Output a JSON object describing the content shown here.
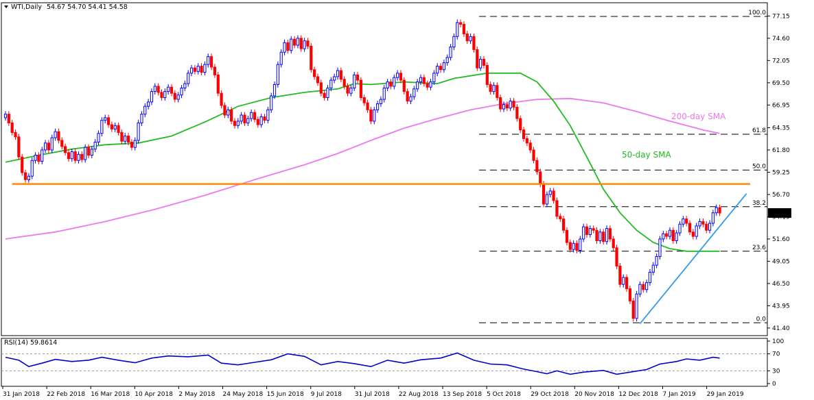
{
  "header": {
    "symbol": "WTI,Daily",
    "ohlc": "54.67 54.70 54.41 54.58"
  },
  "colors": {
    "bull": "#0000ff",
    "bear": "#ff0000",
    "sma50": "#22bb22",
    "sma200": "#ee77ee",
    "resistance": "#ff8800",
    "trendline": "#3399ee",
    "rsi": "#0000cc",
    "grid_dash": "#000000"
  },
  "rsi_panel": {
    "title": "RSI(14) 59.8614",
    "levels": [
      "100",
      "70",
      "30",
      "0"
    ],
    "level_values": [
      100,
      70,
      30,
      0
    ]
  },
  "chart_data": {
    "type": "candlestick",
    "price_axis": {
      "ticks": [
        "77.15",
        "74.60",
        "72.05",
        "69.50",
        "66.95",
        "64.35",
        "61.80",
        "59.25",
        "56.70",
        "54.15",
        "51.60",
        "49.05",
        "46.50",
        "43.95",
        "41.40"
      ],
      "tick_values": [
        77.15,
        74.6,
        72.05,
        69.5,
        66.95,
        64.35,
        61.8,
        59.25,
        56.7,
        54.15,
        51.6,
        49.05,
        46.5,
        43.95,
        41.4
      ],
      "ylim": [
        41.0,
        78.2
      ],
      "current_price": "54.58",
      "current_price_value": 54.58
    },
    "date_axis": {
      "labels": [
        "31 Jan 2018",
        "22 Feb 2018",
        "16 Mar 2018",
        "10 Apr 2018",
        "2 May 2018",
        "24 May 2018",
        "15 Jun 2018",
        "9 Jul 2018",
        "31 Jul 2018",
        "22 Aug 2018",
        "13 Sep 2018",
        "5 Oct 2018",
        "29 Oct 2018",
        "20 Nov 2018",
        "12 Dec 2018",
        "7 Jan 2019",
        "29 Jan 2019"
      ]
    },
    "fibonacci": [
      {
        "label": "100.0",
        "value": 77.1
      },
      {
        "label": "61.8",
        "value": 63.6
      },
      {
        "label": "50.0",
        "value": 59.5
      },
      {
        "label": "38.2",
        "value": 55.3
      },
      {
        "label": "23.6",
        "value": 50.2
      },
      {
        "label": "0.0",
        "value": 42.0
      }
    ],
    "resistance_level": 57.9,
    "sma_labels": {
      "sma50": "50-day SMA",
      "sma200": "200-day SMA"
    },
    "sma200_points": [
      [
        0,
        51.6
      ],
      [
        30,
        52.4
      ],
      [
        60,
        53.6
      ],
      [
        90,
        55.0
      ],
      [
        120,
        56.6
      ],
      [
        150,
        58.4
      ],
      [
        180,
        60.1
      ],
      [
        200,
        61.4
      ],
      [
        220,
        62.9
      ],
      [
        240,
        64.3
      ],
      [
        260,
        65.4
      ],
      [
        280,
        66.4
      ],
      [
        300,
        67.1
      ],
      [
        320,
        67.6
      ],
      [
        340,
        67.7
      ],
      [
        360,
        67.2
      ],
      [
        380,
        66.2
      ],
      [
        400,
        65.1
      ],
      [
        420,
        64.1
      ],
      [
        430,
        63.7
      ]
    ],
    "sma50_points": [
      [
        0,
        60.4
      ],
      [
        20,
        61.2
      ],
      [
        40,
        61.9
      ],
      [
        60,
        62.4
      ],
      [
        80,
        62.6
      ],
      [
        100,
        63.4
      ],
      [
        120,
        65.0
      ],
      [
        140,
        66.8
      ],
      [
        160,
        67.8
      ],
      [
        180,
        68.4
      ],
      [
        200,
        68.8
      ],
      [
        210,
        69.4
      ],
      [
        220,
        69.3
      ],
      [
        240,
        69.6
      ],
      [
        260,
        69.4
      ],
      [
        270,
        70.0
      ],
      [
        290,
        70.6
      ],
      [
        310,
        70.6
      ],
      [
        320,
        69.6
      ],
      [
        330,
        67.4
      ],
      [
        340,
        64.6
      ],
      [
        350,
        61.0
      ],
      [
        360,
        57.3
      ],
      [
        370,
        54.6
      ],
      [
        380,
        52.6
      ],
      [
        390,
        51.2
      ],
      [
        400,
        50.5
      ],
      [
        410,
        50.2
      ],
      [
        430,
        50.2
      ]
    ],
    "trendline": {
      "start": [
        382,
        41.9
      ],
      "end": [
        442,
        56.8
      ]
    },
    "candles": [
      [
        0,
        65.5,
        65.9
      ],
      [
        2,
        65.9,
        64.9
      ],
      [
        4,
        64.9,
        63.8
      ],
      [
        6,
        63.8,
        63.3
      ],
      [
        8,
        63.3,
        61.0
      ],
      [
        10,
        61.0,
        59.2
      ],
      [
        12,
        59.2,
        58.4
      ],
      [
        14,
        58.4,
        58.8
      ],
      [
        16,
        58.8,
        60.6
      ],
      [
        18,
        60.6,
        61.2
      ],
      [
        20,
        61.2,
        60.5
      ],
      [
        22,
        60.5,
        61.8
      ],
      [
        24,
        61.8,
        62.6
      ],
      [
        26,
        62.6,
        61.8
      ],
      [
        28,
        61.8,
        63.2
      ],
      [
        30,
        63.2,
        63.9
      ],
      [
        32,
        63.9,
        62.9
      ],
      [
        34,
        62.9,
        62.2
      ],
      [
        36,
        62.2,
        61.5
      ],
      [
        38,
        61.5,
        60.8
      ],
      [
        40,
        60.8,
        61.6
      ],
      [
        42,
        61.6,
        60.6
      ],
      [
        44,
        60.6,
        61.3
      ],
      [
        46,
        61.3,
        60.7
      ],
      [
        48,
        60.7,
        62.1
      ],
      [
        50,
        62.1,
        61.2
      ],
      [
        52,
        61.2,
        61.9
      ],
      [
        54,
        61.9,
        62.7
      ],
      [
        56,
        62.7,
        63.7
      ],
      [
        58,
        63.7,
        65.2
      ],
      [
        60,
        65.2,
        65.5
      ],
      [
        62,
        65.5,
        64.7
      ],
      [
        64,
        64.7,
        64.2
      ],
      [
        66,
        64.2,
        64.6
      ],
      [
        68,
        64.6,
        63.8
      ],
      [
        70,
        63.8,
        62.8
      ],
      [
        72,
        62.8,
        63.4
      ],
      [
        74,
        63.4,
        62.7
      ],
      [
        76,
        62.7,
        62.1
      ],
      [
        78,
        62.1,
        62.9
      ],
      [
        80,
        62.9,
        64.9
      ],
      [
        82,
        64.9,
        65.9
      ],
      [
        84,
        65.9,
        66.8
      ],
      [
        86,
        66.8,
        67.3
      ],
      [
        88,
        67.3,
        68.5
      ],
      [
        90,
        68.5,
        69.1
      ],
      [
        92,
        69.1,
        68.4
      ],
      [
        94,
        68.4,
        67.8
      ],
      [
        96,
        67.8,
        68.5
      ],
      [
        98,
        68.5,
        69.0
      ],
      [
        100,
        69.0,
        68.3
      ],
      [
        102,
        68.3,
        67.6
      ],
      [
        104,
        67.6,
        68.1
      ],
      [
        106,
        68.1,
        68.9
      ],
      [
        108,
        68.9,
        69.4
      ],
      [
        110,
        69.4,
        70.6
      ],
      [
        112,
        70.6,
        71.2
      ],
      [
        114,
        71.2,
        70.8
      ],
      [
        116,
        70.8,
        71.4
      ],
      [
        118,
        71.4,
        70.7
      ],
      [
        120,
        70.7,
        71.6
      ],
      [
        122,
        71.6,
        72.5
      ],
      [
        124,
        72.5,
        71.3
      ],
      [
        126,
        71.3,
        70.4
      ],
      [
        128,
        70.4,
        68.3
      ],
      [
        130,
        68.3,
        66.9
      ],
      [
        132,
        66.9,
        65.8
      ],
      [
        134,
        65.8,
        66.4
      ],
      [
        136,
        66.4,
        65.1
      ],
      [
        138,
        65.1,
        64.6
      ],
      [
        140,
        64.6,
        65.1
      ],
      [
        142,
        65.1,
        65.8
      ],
      [
        144,
        65.8,
        64.9
      ],
      [
        146,
        64.9,
        65.4
      ],
      [
        148,
        65.4,
        66.1
      ],
      [
        150,
        66.1,
        65.3
      ],
      [
        152,
        65.3,
        64.7
      ],
      [
        154,
        64.7,
        65.6
      ],
      [
        156,
        65.6,
        65.2
      ],
      [
        158,
        65.2,
        66.4
      ],
      [
        160,
        66.4,
        68.0
      ],
      [
        162,
        68.0,
        69.3
      ],
      [
        164,
        69.3,
        71.6
      ],
      [
        166,
        71.6,
        73.0
      ],
      [
        168,
        73.0,
        74.1
      ],
      [
        170,
        74.1,
        73.2
      ],
      [
        172,
        73.2,
        74.5
      ],
      [
        174,
        74.5,
        73.8
      ],
      [
        176,
        73.8,
        74.6
      ],
      [
        178,
        74.6,
        73.4
      ],
      [
        180,
        73.4,
        74.3
      ],
      [
        182,
        74.3,
        73.7
      ],
      [
        184,
        73.7,
        71.0
      ],
      [
        186,
        71.0,
        70.2
      ],
      [
        188,
        70.2,
        69.5
      ],
      [
        190,
        69.5,
        68.3
      ],
      [
        192,
        68.3,
        67.8
      ],
      [
        194,
        67.8,
        68.9
      ],
      [
        196,
        68.9,
        69.8
      ],
      [
        198,
        69.8,
        70.2
      ],
      [
        200,
        70.2,
        70.9
      ],
      [
        202,
        70.9,
        69.9
      ],
      [
        204,
        69.9,
        69.1
      ],
      [
        206,
        69.1,
        68.3
      ],
      [
        208,
        68.3,
        68.9
      ],
      [
        210,
        68.9,
        70.4
      ],
      [
        212,
        70.4,
        69.8
      ],
      [
        214,
        69.8,
        67.8
      ],
      [
        216,
        67.8,
        67.2
      ],
      [
        218,
        67.2,
        66.4
      ],
      [
        220,
        66.4,
        65.1
      ],
      [
        222,
        65.1,
        66.4
      ],
      [
        224,
        66.4,
        67.1
      ],
      [
        226,
        67.1,
        67.6
      ],
      [
        228,
        67.6,
        68.9
      ],
      [
        230,
        68.9,
        69.6
      ],
      [
        232,
        69.6,
        69.1
      ],
      [
        234,
        69.1,
        70.1
      ],
      [
        236,
        70.1,
        70.6
      ],
      [
        238,
        70.6,
        69.8
      ],
      [
        240,
        69.8,
        68.5
      ],
      [
        242,
        68.5,
        67.4
      ],
      [
        244,
        67.4,
        67.9
      ],
      [
        246,
        67.9,
        68.8
      ],
      [
        248,
        68.8,
        69.6
      ],
      [
        250,
        69.6,
        70.1
      ],
      [
        252,
        70.1,
        69.4
      ],
      [
        254,
        69.4,
        69.0
      ],
      [
        256,
        69.0,
        69.6
      ],
      [
        258,
        69.6,
        70.6
      ],
      [
        260,
        70.6,
        71.4
      ],
      [
        262,
        71.4,
        71.0
      ],
      [
        264,
        71.0,
        71.8
      ],
      [
        266,
        71.8,
        72.4
      ],
      [
        268,
        72.4,
        73.6
      ],
      [
        270,
        73.6,
        74.8
      ],
      [
        272,
        74.8,
        76.4
      ],
      [
        274,
        76.4,
        76.2
      ],
      [
        276,
        76.2,
        75.1
      ],
      [
        278,
        75.1,
        74.3
      ],
      [
        280,
        74.3,
        74.8
      ],
      [
        282,
        74.8,
        73.3
      ],
      [
        284,
        73.3,
        71.2
      ],
      [
        286,
        71.2,
        72.2
      ],
      [
        288,
        72.2,
        71.5
      ],
      [
        290,
        71.5,
        69.3
      ],
      [
        292,
        69.3,
        68.5
      ],
      [
        294,
        68.5,
        69.2
      ],
      [
        296,
        69.2,
        67.8
      ],
      [
        298,
        67.8,
        66.5
      ],
      [
        300,
        66.5,
        67.0
      ],
      [
        302,
        67.0,
        66.6
      ],
      [
        304,
        66.6,
        67.4
      ],
      [
        306,
        67.4,
        66.7
      ],
      [
        308,
        66.7,
        65.4
      ],
      [
        310,
        65.4,
        64.1
      ],
      [
        312,
        64.1,
        63.1
      ],
      [
        314,
        63.1,
        62.6
      ],
      [
        316,
        62.6,
        61.8
      ],
      [
        318,
        61.8,
        60.6
      ],
      [
        320,
        60.6,
        59.3
      ],
      [
        322,
        59.3,
        57.9
      ],
      [
        324,
        57.9,
        55.6
      ],
      [
        326,
        55.6,
        56.7
      ],
      [
        328,
        56.7,
        57.1
      ],
      [
        330,
        57.1,
        56.0
      ],
      [
        332,
        56.0,
        54.2
      ],
      [
        334,
        54.2,
        53.9
      ],
      [
        336,
        53.9,
        52.6
      ],
      [
        338,
        52.6,
        51.2
      ],
      [
        340,
        51.2,
        50.4
      ],
      [
        342,
        50.4,
        51.1
      ],
      [
        344,
        51.1,
        50.3
      ],
      [
        346,
        50.3,
        51.6
      ],
      [
        348,
        51.6,
        53.0
      ],
      [
        350,
        53.0,
        52.1
      ],
      [
        352,
        52.1,
        52.8
      ],
      [
        354,
        52.8,
        52.6
      ],
      [
        356,
        52.6,
        51.4
      ],
      [
        358,
        51.4,
        52.4
      ],
      [
        360,
        52.4,
        51.3
      ],
      [
        362,
        51.3,
        52.8
      ],
      [
        364,
        52.8,
        51.6
      ],
      [
        366,
        51.6,
        50.6
      ],
      [
        368,
        50.6,
        48.5
      ],
      [
        370,
        48.5,
        46.4
      ],
      [
        372,
        46.4,
        47.2
      ],
      [
        374,
        47.2,
        45.9
      ],
      [
        376,
        45.9,
        44.5
      ],
      [
        378,
        44.5,
        42.5
      ],
      [
        380,
        42.5,
        45.3
      ],
      [
        382,
        45.3,
        46.4
      ],
      [
        384,
        46.4,
        45.8
      ],
      [
        386,
        45.8,
        46.6
      ],
      [
        388,
        46.6,
        47.8
      ],
      [
        390,
        47.8,
        48.6
      ],
      [
        392,
        48.6,
        49.6
      ],
      [
        394,
        49.6,
        51.6
      ],
      [
        396,
        51.6,
        52.2
      ],
      [
        398,
        52.2,
        51.9
      ],
      [
        400,
        51.9,
        52.6
      ],
      [
        402,
        52.6,
        51.4
      ],
      [
        404,
        51.4,
        52.3
      ],
      [
        406,
        52.3,
        53.3
      ],
      [
        408,
        53.3,
        53.9
      ],
      [
        410,
        53.9,
        53.4
      ],
      [
        412,
        53.4,
        52.4
      ],
      [
        414,
        52.4,
        51.9
      ],
      [
        416,
        51.9,
        53.1
      ],
      [
        418,
        53.1,
        53.6
      ],
      [
        420,
        53.6,
        53.3
      ],
      [
        422,
        53.3,
        52.6
      ],
      [
        424,
        52.6,
        53.4
      ],
      [
        426,
        53.4,
        54.6
      ],
      [
        428,
        54.6,
        55.2
      ],
      [
        430,
        55.2,
        54.58
      ]
    ],
    "rsi_points": [
      [
        0,
        62
      ],
      [
        8,
        55
      ],
      [
        14,
        40
      ],
      [
        22,
        48
      ],
      [
        30,
        57
      ],
      [
        40,
        52
      ],
      [
        50,
        55
      ],
      [
        58,
        62
      ],
      [
        68,
        55
      ],
      [
        78,
        49
      ],
      [
        88,
        60
      ],
      [
        98,
        65
      ],
      [
        110,
        63
      ],
      [
        122,
        67
      ],
      [
        130,
        48
      ],
      [
        140,
        44
      ],
      [
        150,
        50
      ],
      [
        160,
        56
      ],
      [
        170,
        70
      ],
      [
        180,
        64
      ],
      [
        190,
        44
      ],
      [
        200,
        52
      ],
      [
        210,
        47
      ],
      [
        220,
        40
      ],
      [
        230,
        55
      ],
      [
        240,
        48
      ],
      [
        250,
        56
      ],
      [
        262,
        60
      ],
      [
        272,
        72
      ],
      [
        282,
        55
      ],
      [
        292,
        46
      ],
      [
        302,
        44
      ],
      [
        312,
        34
      ],
      [
        320,
        28
      ],
      [
        326,
        23
      ],
      [
        332,
        30
      ],
      [
        340,
        22
      ],
      [
        348,
        27
      ],
      [
        360,
        31
      ],
      [
        368,
        22
      ],
      [
        378,
        28
      ],
      [
        386,
        33
      ],
      [
        394,
        46
      ],
      [
        404,
        52
      ],
      [
        410,
        58
      ],
      [
        418,
        55
      ],
      [
        426,
        62
      ],
      [
        430,
        60
      ]
    ]
  }
}
